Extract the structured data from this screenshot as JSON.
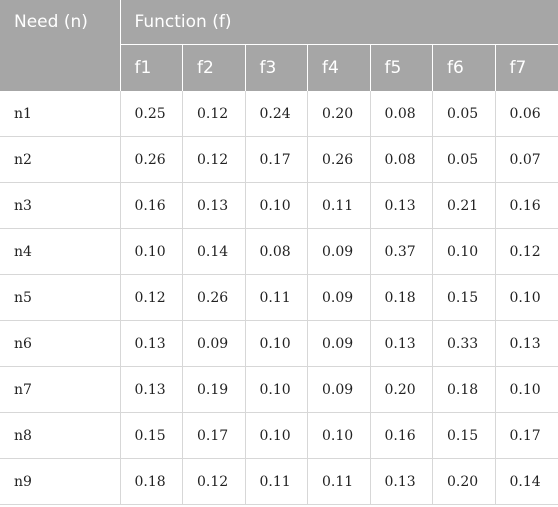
{
  "table": {
    "header_need": "Need (n)",
    "header_function": "Function (f)",
    "function_columns": [
      "f1",
      "f2",
      "f3",
      "f4",
      "f5",
      "f6",
      "f7"
    ],
    "rows": [
      {
        "need": "n1",
        "values": [
          "0.25",
          "0.12",
          "0.24",
          "0.20",
          "0.08",
          "0.05",
          "0.06"
        ]
      },
      {
        "need": "n2",
        "values": [
          "0.26",
          "0.12",
          "0.17",
          "0.26",
          "0.08",
          "0.05",
          "0.07"
        ]
      },
      {
        "need": "n3",
        "values": [
          "0.16",
          "0.13",
          "0.10",
          "0.11",
          "0.13",
          "0.21",
          "0.16"
        ]
      },
      {
        "need": "n4",
        "values": [
          "0.10",
          "0.14",
          "0.08",
          "0.09",
          "0.37",
          "0.10",
          "0.12"
        ]
      },
      {
        "need": "n5",
        "values": [
          "0.12",
          "0.26",
          "0.11",
          "0.09",
          "0.18",
          "0.15",
          "0.10"
        ]
      },
      {
        "need": "n6",
        "values": [
          "0.13",
          "0.09",
          "0.10",
          "0.09",
          "0.13",
          "0.33",
          "0.13"
        ]
      },
      {
        "need": "n7",
        "values": [
          "0.13",
          "0.19",
          "0.10",
          "0.09",
          "0.20",
          "0.18",
          "0.10"
        ]
      },
      {
        "need": "n8",
        "values": [
          "0.15",
          "0.17",
          "0.10",
          "0.10",
          "0.16",
          "0.15",
          "0.17"
        ]
      },
      {
        "need": "n9",
        "values": [
          "0.18",
          "0.12",
          "0.11",
          "0.11",
          "0.13",
          "0.20",
          "0.14"
        ]
      }
    ]
  },
  "colors": {
    "header_background": "#a6a6a6",
    "header_text": "#ffffff",
    "grid_line": "#d7d7d7"
  }
}
